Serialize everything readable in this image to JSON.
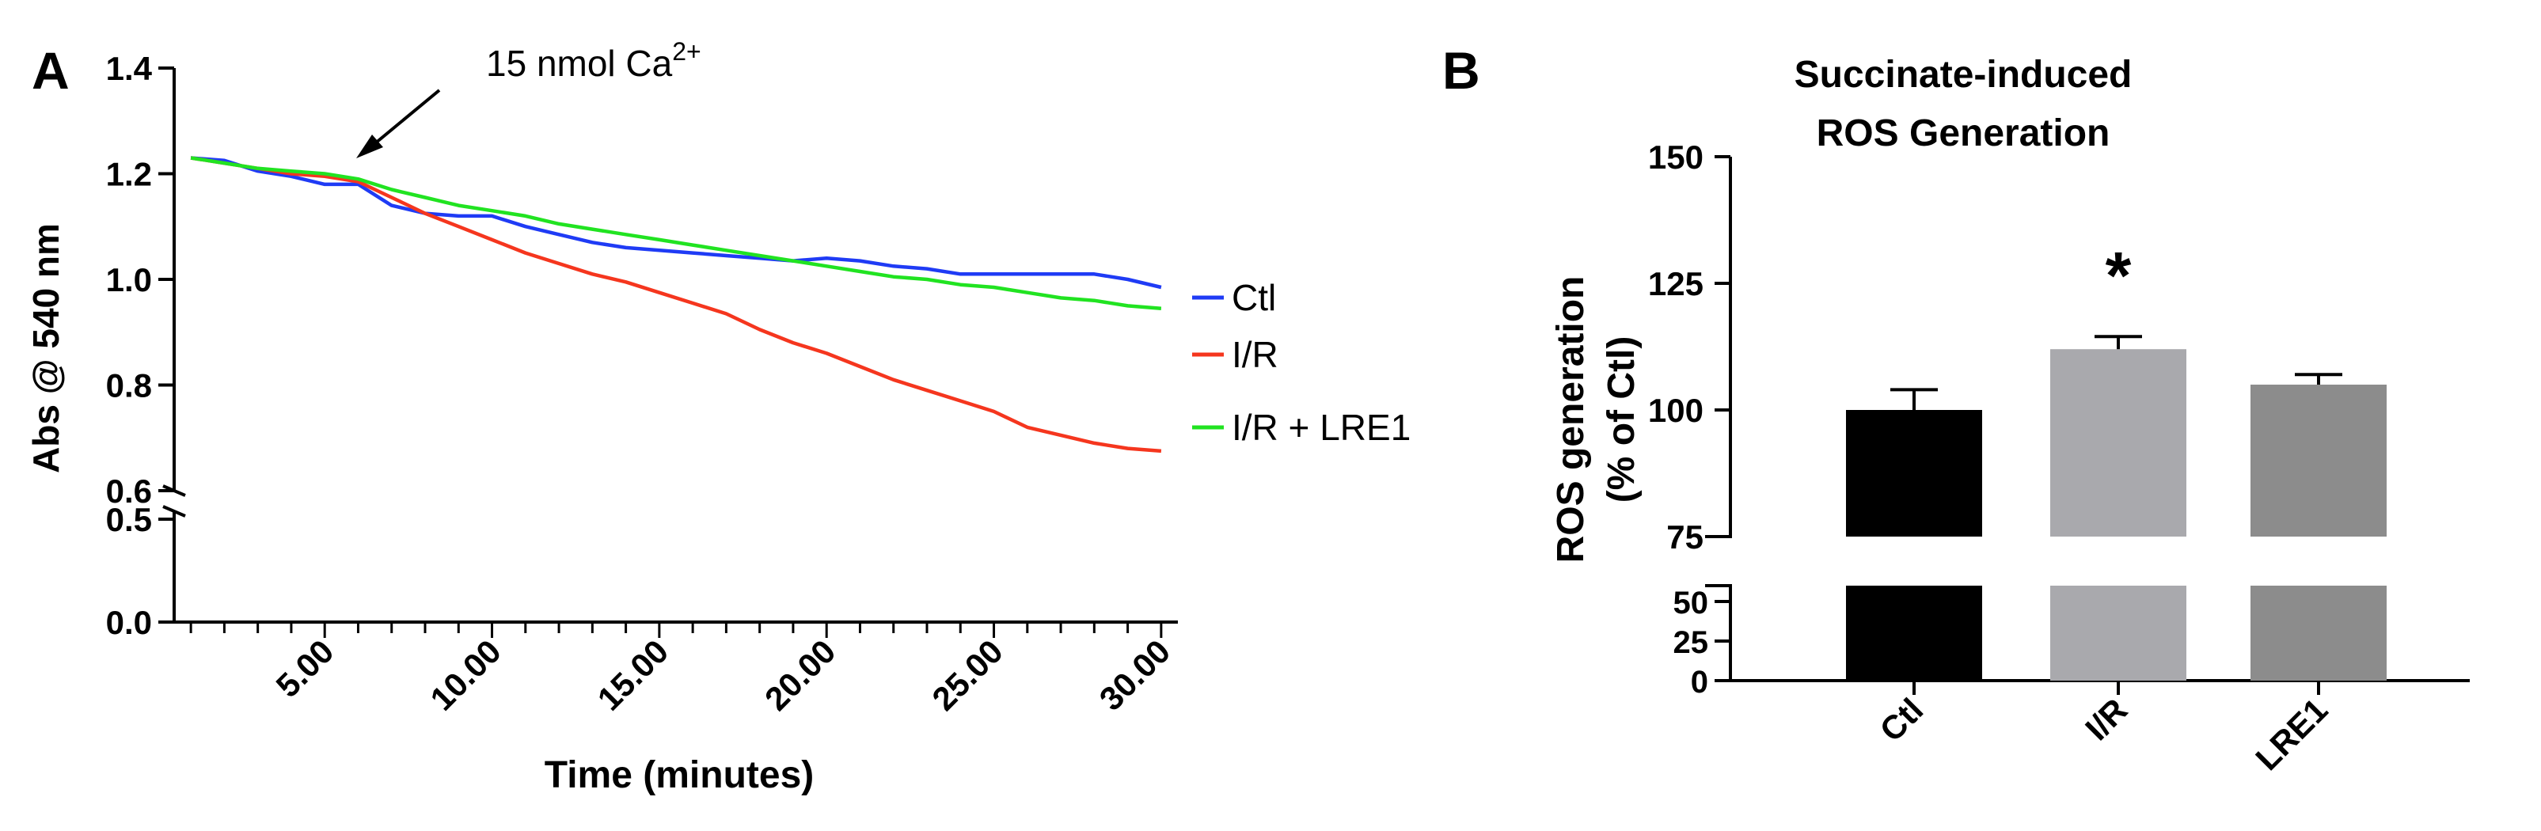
{
  "panel_a": {
    "label": "A",
    "annotation": {
      "text": "15 nmol Ca",
      "superscript": "2+"
    }
  },
  "panel_b": {
    "label": "B"
  },
  "chart_data": [
    {
      "type": "line",
      "title": "",
      "xlabel": "Time (minutes)",
      "ylabel": "Abs @ 540 nm",
      "xlim": [
        0.5,
        30.5
      ],
      "ylim": [
        0.0,
        1.4
      ],
      "axis_break": [
        0.5,
        0.6
      ],
      "y_ticks_upper": [
        "0.6",
        "0.8",
        "1.0",
        "1.2",
        "1.4"
      ],
      "y_ticks_lower": [
        "0.0",
        "0.5"
      ],
      "x_tick_labels": [
        "5.00",
        "10.00",
        "15.00",
        "20.00",
        "25.00",
        "30.00"
      ],
      "legend": "right",
      "x": [
        1,
        2,
        3,
        4,
        5,
        6,
        7,
        8,
        9,
        10,
        11,
        12,
        13,
        14,
        15,
        16,
        17,
        18,
        19,
        20,
        21,
        22,
        23,
        24,
        25,
        26,
        27,
        28,
        29,
        30
      ],
      "series": [
        {
          "name": "Ctl",
          "color": "#1f3bf5",
          "values": [
            1.23,
            1.225,
            1.205,
            1.195,
            1.18,
            1.18,
            1.14,
            1.125,
            1.12,
            1.12,
            1.1,
            1.085,
            1.07,
            1.06,
            1.055,
            1.05,
            1.045,
            1.04,
            1.035,
            1.04,
            1.035,
            1.025,
            1.02,
            1.01,
            1.01,
            1.01,
            1.01,
            1.01,
            1.0,
            0.985
          ]
        },
        {
          "name": "I/R",
          "color": "#f5361e",
          "values": [
            1.23,
            1.22,
            1.21,
            1.2,
            1.195,
            1.185,
            1.155,
            1.125,
            1.1,
            1.075,
            1.05,
            1.03,
            1.01,
            0.995,
            0.975,
            0.955,
            0.935,
            0.905,
            0.88,
            0.86,
            0.835,
            0.81,
            0.79,
            0.77,
            0.75,
            0.72,
            0.705,
            0.69,
            0.68,
            0.675
          ]
        },
        {
          "name": "I/R + LRE1",
          "color": "#21e321",
          "values": [
            1.23,
            1.22,
            1.21,
            1.205,
            1.2,
            1.19,
            1.17,
            1.155,
            1.14,
            1.13,
            1.12,
            1.105,
            1.095,
            1.085,
            1.075,
            1.065,
            1.055,
            1.045,
            1.035,
            1.025,
            1.015,
            1.005,
            1.0,
            0.99,
            0.985,
            0.975,
            0.965,
            0.96,
            0.95,
            0.945
          ]
        }
      ]
    },
    {
      "type": "bar",
      "title": [
        "Succinate-induced",
        "ROS Generation"
      ],
      "xlabel": "",
      "ylabel": [
        "ROS generation",
        "(% of Ctl)"
      ],
      "ylim": [
        0,
        150
      ],
      "axis_break": [
        60,
        75
      ],
      "y_ticks_upper": [
        "75",
        "100",
        "125",
        "150"
      ],
      "y_ticks_lower": [
        "0",
        "25",
        "50"
      ],
      "categories": [
        "Ctl",
        "I/R",
        "LRE1"
      ],
      "values": [
        100,
        112,
        105
      ],
      "errors": [
        4,
        2.5,
        2
      ],
      "colors": [
        "#000000",
        "#a9a9ad",
        "#8c8c8c"
      ],
      "significance": [
        "",
        "*",
        ""
      ]
    }
  ]
}
